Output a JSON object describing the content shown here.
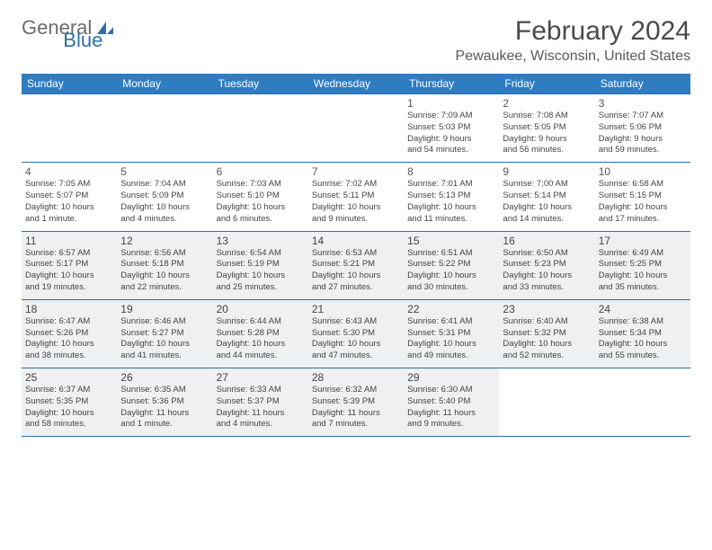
{
  "brand": {
    "general": "General",
    "blue": "Blue"
  },
  "title": "February 2024",
  "location": "Pewaukee, Wisconsin, United States",
  "dayHeaders": [
    "Sunday",
    "Monday",
    "Tuesday",
    "Wednesday",
    "Thursday",
    "Friday",
    "Saturday"
  ],
  "colors": {
    "headerBg": "#2f7cc1",
    "headerText": "#ffffff",
    "rowBorder": "#2f6fa8",
    "shadedBg": "#eef0f2",
    "bodyText": "#444444"
  },
  "weeks": [
    [
      {
        "n": "",
        "sunrise": "",
        "sunset": "",
        "daylight1": "",
        "daylight2": ""
      },
      {
        "n": "",
        "sunrise": "",
        "sunset": "",
        "daylight1": "",
        "daylight2": ""
      },
      {
        "n": "",
        "sunrise": "",
        "sunset": "",
        "daylight1": "",
        "daylight2": ""
      },
      {
        "n": "",
        "sunrise": "",
        "sunset": "",
        "daylight1": "",
        "daylight2": ""
      },
      {
        "n": "1",
        "sunrise": "Sunrise: 7:09 AM",
        "sunset": "Sunset: 5:03 PM",
        "daylight1": "Daylight: 9 hours",
        "daylight2": "and 54 minutes."
      },
      {
        "n": "2",
        "sunrise": "Sunrise: 7:08 AM",
        "sunset": "Sunset: 5:05 PM",
        "daylight1": "Daylight: 9 hours",
        "daylight2": "and 56 minutes."
      },
      {
        "n": "3",
        "sunrise": "Sunrise: 7:07 AM",
        "sunset": "Sunset: 5:06 PM",
        "daylight1": "Daylight: 9 hours",
        "daylight2": "and 59 minutes."
      }
    ],
    [
      {
        "n": "4",
        "sunrise": "Sunrise: 7:05 AM",
        "sunset": "Sunset: 5:07 PM",
        "daylight1": "Daylight: 10 hours",
        "daylight2": "and 1 minute."
      },
      {
        "n": "5",
        "sunrise": "Sunrise: 7:04 AM",
        "sunset": "Sunset: 5:09 PM",
        "daylight1": "Daylight: 10 hours",
        "daylight2": "and 4 minutes."
      },
      {
        "n": "6",
        "sunrise": "Sunrise: 7:03 AM",
        "sunset": "Sunset: 5:10 PM",
        "daylight1": "Daylight: 10 hours",
        "daylight2": "and 6 minutes."
      },
      {
        "n": "7",
        "sunrise": "Sunrise: 7:02 AM",
        "sunset": "Sunset: 5:11 PM",
        "daylight1": "Daylight: 10 hours",
        "daylight2": "and 9 minutes."
      },
      {
        "n": "8",
        "sunrise": "Sunrise: 7:01 AM",
        "sunset": "Sunset: 5:13 PM",
        "daylight1": "Daylight: 10 hours",
        "daylight2": "and 11 minutes."
      },
      {
        "n": "9",
        "sunrise": "Sunrise: 7:00 AM",
        "sunset": "Sunset: 5:14 PM",
        "daylight1": "Daylight: 10 hours",
        "daylight2": "and 14 minutes."
      },
      {
        "n": "10",
        "sunrise": "Sunrise: 6:58 AM",
        "sunset": "Sunset: 5:15 PM",
        "daylight1": "Daylight: 10 hours",
        "daylight2": "and 17 minutes."
      }
    ],
    [
      {
        "n": "11",
        "sunrise": "Sunrise: 6:57 AM",
        "sunset": "Sunset: 5:17 PM",
        "daylight1": "Daylight: 10 hours",
        "daylight2": "and 19 minutes.",
        "shaded": true
      },
      {
        "n": "12",
        "sunrise": "Sunrise: 6:56 AM",
        "sunset": "Sunset: 5:18 PM",
        "daylight1": "Daylight: 10 hours",
        "daylight2": "and 22 minutes.",
        "shaded": true
      },
      {
        "n": "13",
        "sunrise": "Sunrise: 6:54 AM",
        "sunset": "Sunset: 5:19 PM",
        "daylight1": "Daylight: 10 hours",
        "daylight2": "and 25 minutes.",
        "shaded": true
      },
      {
        "n": "14",
        "sunrise": "Sunrise: 6:53 AM",
        "sunset": "Sunset: 5:21 PM",
        "daylight1": "Daylight: 10 hours",
        "daylight2": "and 27 minutes.",
        "shaded": true
      },
      {
        "n": "15",
        "sunrise": "Sunrise: 6:51 AM",
        "sunset": "Sunset: 5:22 PM",
        "daylight1": "Daylight: 10 hours",
        "daylight2": "and 30 minutes.",
        "shaded": true
      },
      {
        "n": "16",
        "sunrise": "Sunrise: 6:50 AM",
        "sunset": "Sunset: 5:23 PM",
        "daylight1": "Daylight: 10 hours",
        "daylight2": "and 33 minutes.",
        "shaded": true
      },
      {
        "n": "17",
        "sunrise": "Sunrise: 6:49 AM",
        "sunset": "Sunset: 5:25 PM",
        "daylight1": "Daylight: 10 hours",
        "daylight2": "and 35 minutes.",
        "shaded": true
      }
    ],
    [
      {
        "n": "18",
        "sunrise": "Sunrise: 6:47 AM",
        "sunset": "Sunset: 5:26 PM",
        "daylight1": "Daylight: 10 hours",
        "daylight2": "and 38 minutes.",
        "shaded": true
      },
      {
        "n": "19",
        "sunrise": "Sunrise: 6:46 AM",
        "sunset": "Sunset: 5:27 PM",
        "daylight1": "Daylight: 10 hours",
        "daylight2": "and 41 minutes.",
        "shaded": true
      },
      {
        "n": "20",
        "sunrise": "Sunrise: 6:44 AM",
        "sunset": "Sunset: 5:28 PM",
        "daylight1": "Daylight: 10 hours",
        "daylight2": "and 44 minutes.",
        "shaded": true
      },
      {
        "n": "21",
        "sunrise": "Sunrise: 6:43 AM",
        "sunset": "Sunset: 5:30 PM",
        "daylight1": "Daylight: 10 hours",
        "daylight2": "and 47 minutes.",
        "shaded": true
      },
      {
        "n": "22",
        "sunrise": "Sunrise: 6:41 AM",
        "sunset": "Sunset: 5:31 PM",
        "daylight1": "Daylight: 10 hours",
        "daylight2": "and 49 minutes.",
        "shaded": true
      },
      {
        "n": "23",
        "sunrise": "Sunrise: 6:40 AM",
        "sunset": "Sunset: 5:32 PM",
        "daylight1": "Daylight: 10 hours",
        "daylight2": "and 52 minutes.",
        "shaded": true
      },
      {
        "n": "24",
        "sunrise": "Sunrise: 6:38 AM",
        "sunset": "Sunset: 5:34 PM",
        "daylight1": "Daylight: 10 hours",
        "daylight2": "and 55 minutes.",
        "shaded": true
      }
    ],
    [
      {
        "n": "25",
        "sunrise": "Sunrise: 6:37 AM",
        "sunset": "Sunset: 5:35 PM",
        "daylight1": "Daylight: 10 hours",
        "daylight2": "and 58 minutes.",
        "shaded": true
      },
      {
        "n": "26",
        "sunrise": "Sunrise: 6:35 AM",
        "sunset": "Sunset: 5:36 PM",
        "daylight1": "Daylight: 11 hours",
        "daylight2": "and 1 minute.",
        "shaded": true
      },
      {
        "n": "27",
        "sunrise": "Sunrise: 6:33 AM",
        "sunset": "Sunset: 5:37 PM",
        "daylight1": "Daylight: 11 hours",
        "daylight2": "and 4 minutes.",
        "shaded": true
      },
      {
        "n": "28",
        "sunrise": "Sunrise: 6:32 AM",
        "sunset": "Sunset: 5:39 PM",
        "daylight1": "Daylight: 11 hours",
        "daylight2": "and 7 minutes.",
        "shaded": true
      },
      {
        "n": "29",
        "sunrise": "Sunrise: 6:30 AM",
        "sunset": "Sunset: 5:40 PM",
        "daylight1": "Daylight: 11 hours",
        "daylight2": "and 9 minutes.",
        "shaded": true
      },
      {
        "n": "",
        "sunrise": "",
        "sunset": "",
        "daylight1": "",
        "daylight2": ""
      },
      {
        "n": "",
        "sunrise": "",
        "sunset": "",
        "daylight1": "",
        "daylight2": ""
      }
    ]
  ]
}
